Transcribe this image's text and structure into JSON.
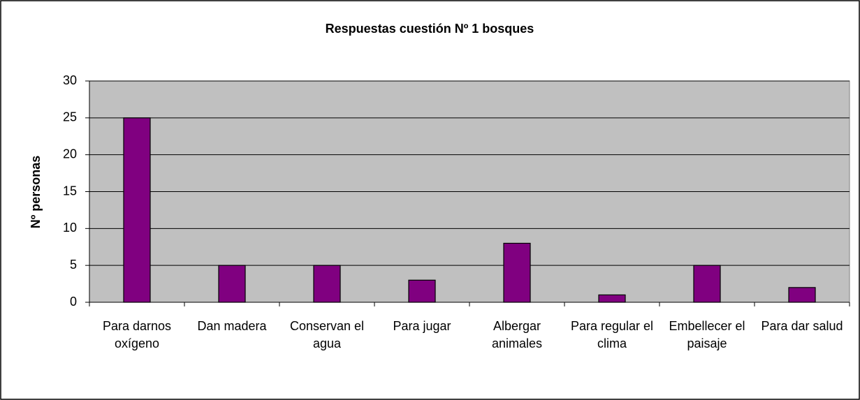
{
  "chart_data": {
    "type": "bar",
    "title": "Respuestas cuestión Nº 1 bosques",
    "y_label": "Nº personas",
    "categories": [
      "Para darnos oxígeno",
      "Dan madera",
      "Conservan el agua",
      "Para jugar",
      "Albergar animales",
      "Para regular el clima",
      "Embellecer el paisaje",
      "Para dar salud"
    ],
    "values": [
      25,
      5,
      5,
      3,
      8,
      1,
      5,
      2
    ],
    "color": "#800080",
    "ylim": [
      0,
      30
    ],
    "yticks": [
      0,
      5,
      10,
      15,
      20,
      25,
      30
    ],
    "grid": true
  }
}
